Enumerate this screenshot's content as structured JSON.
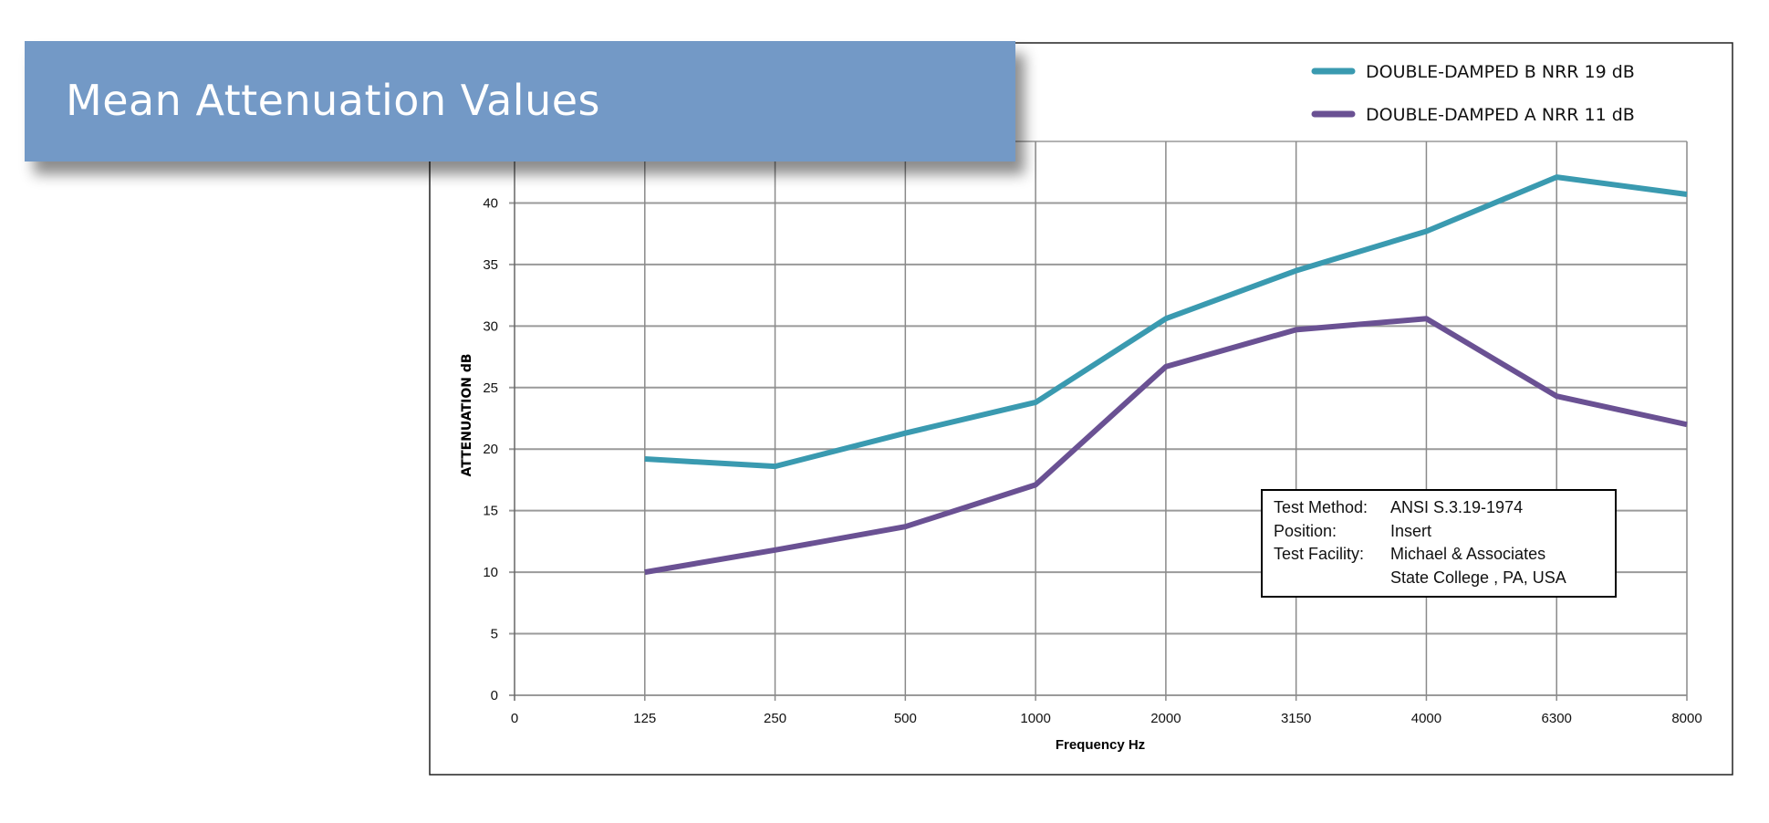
{
  "title": "Mean Attenuation Values",
  "chart_data": {
    "type": "line",
    "title": "Mean Attenuation Values",
    "xlabel": "Frequency Hz",
    "ylabel": "ATTENUATION dB",
    "x_ticks": [
      "0",
      "125",
      "250",
      "500",
      "1000",
      "2000",
      "3150",
      "4000",
      "6300",
      "8000"
    ],
    "categories": [
      "125",
      "250",
      "500",
      "1000",
      "2000",
      "3150",
      "4000",
      "6300",
      "8000"
    ],
    "y_ticks": [
      0,
      5,
      10,
      15,
      20,
      25,
      30,
      35,
      40
    ],
    "ylim": [
      0,
      45
    ],
    "grid": true,
    "legend_position": "top-right",
    "series": [
      {
        "name": "DOUBLE-DAMPED B NRR 19 dB",
        "color": "#3a9ab0",
        "values": [
          19.2,
          18.6,
          21.3,
          23.8,
          30.6,
          34.5,
          37.7,
          42.1,
          40.7
        ]
      },
      {
        "name": "DOUBLE-DAMPED A NRR 11 dB",
        "color": "#6a5193",
        "values": [
          10.0,
          11.8,
          13.7,
          17.1,
          26.7,
          29.7,
          30.6,
          24.3,
          22.0
        ]
      }
    ]
  },
  "info_box": [
    {
      "key": "Test Method:",
      "value": "ANSI S.3.19-1974"
    },
    {
      "key": "Position:",
      "value": "Insert"
    },
    {
      "key": "Test Facility:",
      "value": "Michael & Associates"
    },
    {
      "key": "",
      "value": "State College , PA, USA"
    }
  ]
}
